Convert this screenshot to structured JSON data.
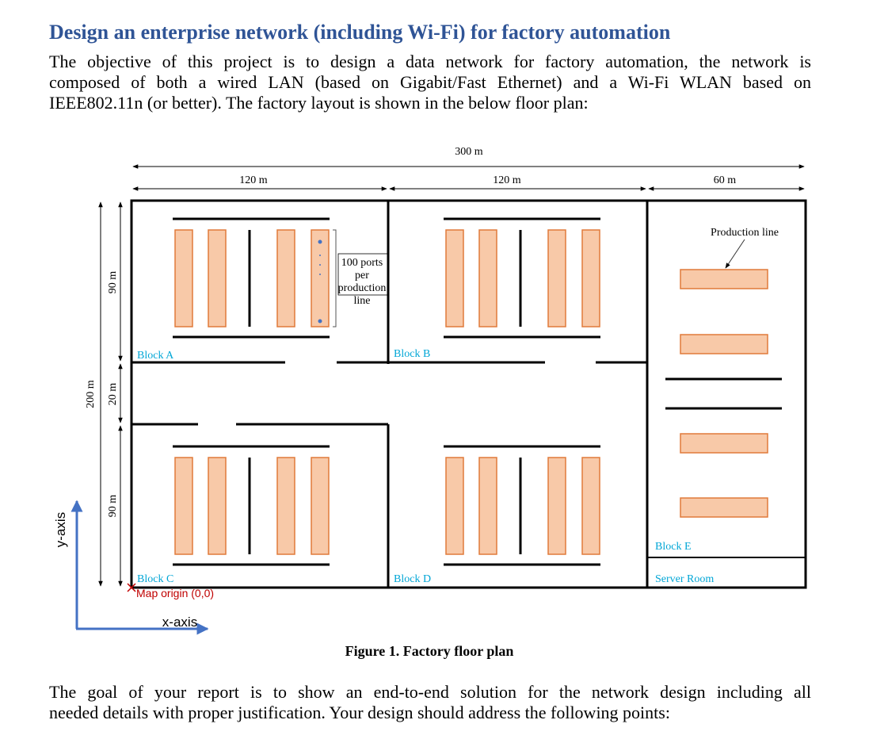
{
  "header": {
    "title": "Design an enterprise network (including Wi-Fi) for factory automation"
  },
  "intro": [
    "The objective of this project is to design a data network for factory automation, the network is",
    "composed of both a wired LAN (based on Gigabit/Fast Ethernet) and a Wi-Fi WLAN based on",
    "IEEE802.11n (or better). The factory layout is shown in the below floor plan:"
  ],
  "figure": {
    "total_width": "300 m",
    "widths": [
      "120 m",
      "120 m",
      "60 m"
    ],
    "total_height": "200 m",
    "heights": [
      "90 m",
      "20 m",
      "90 m"
    ],
    "blocks": [
      "Block A",
      "Block B",
      "Block C",
      "Block D",
      "Block E"
    ],
    "server_room": "Server Room",
    "ports_note": [
      "100 ports",
      "per",
      "production",
      "line"
    ],
    "production_line_label": "Production line",
    "origin_label": "Map origin (0,0)",
    "x_axis": "x-axis",
    "y_axis": "y-axis",
    "caption": "Figure 1. Factory floor plan"
  },
  "goal": [
    "The goal of your report is to show an end-to-end solution for the network design including all",
    "needed details with proper justification. Your design should address the following points:"
  ]
}
